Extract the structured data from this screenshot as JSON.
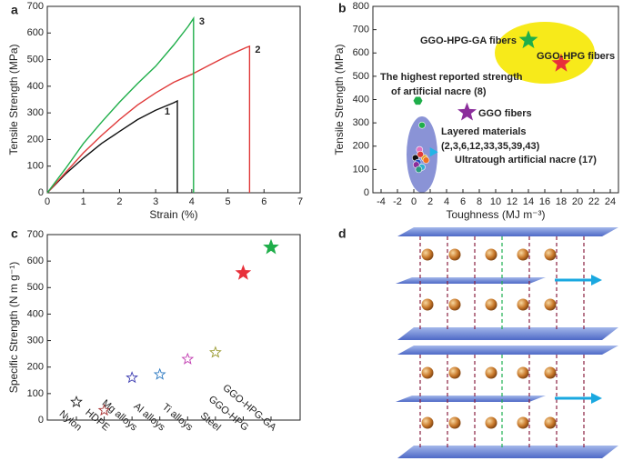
{
  "chart_data": [
    {
      "type": "line",
      "panel_label": "a",
      "xlabel": "Strain (%)",
      "ylabel": "Tensile Strength (MPa)",
      "xlim": [
        0,
        7
      ],
      "xticks": [
        0,
        1,
        2,
        3,
        4,
        5,
        6,
        7
      ],
      "ylim": [
        0,
        700
      ],
      "yticks": [
        0,
        100,
        200,
        300,
        400,
        500,
        600,
        700
      ],
      "series": [
        {
          "name": "1",
          "color": "#111111",
          "x": [
            0,
            0.5,
            1,
            1.5,
            2,
            2.5,
            3,
            3.5,
            3.6,
            3.6
          ],
          "values": [
            0,
            70,
            130,
            185,
            230,
            275,
            310,
            338,
            345,
            0
          ]
        },
        {
          "name": "2",
          "color": "#e03a3a",
          "x": [
            0,
            0.5,
            1,
            1.5,
            2,
            2.5,
            3,
            3.5,
            4,
            4.5,
            5,
            5.5,
            5.6,
            5.6
          ],
          "values": [
            0,
            75,
            150,
            215,
            275,
            330,
            375,
            415,
            445,
            480,
            515,
            545,
            550,
            0
          ]
        },
        {
          "name": "3",
          "color": "#1fae4a",
          "x": [
            0,
            0.5,
            1,
            1.5,
            2,
            2.5,
            3,
            3.5,
            3.9,
            4.05,
            4.05
          ],
          "values": [
            0,
            90,
            185,
            265,
            340,
            410,
            475,
            555,
            625,
            655,
            0
          ]
        }
      ]
    },
    {
      "type": "scatter",
      "panel_label": "b",
      "xlabel": "Toughness (MJ m⁻³)",
      "ylabel": "Tensile Strength (MPa)",
      "xlim": [
        -5,
        25
      ],
      "xticks": [
        -4,
        -2,
        0,
        2,
        4,
        6,
        8,
        10,
        12,
        14,
        16,
        18,
        20,
        22,
        24
      ],
      "ylim": [
        0,
        800
      ],
      "yticks": [
        0,
        100,
        200,
        300,
        400,
        500,
        600,
        700,
        800
      ],
      "series": [
        {
          "name": [
            "GGO-HPG-GA fibers"
          ],
          "color": "#1fae4a",
          "marker": "star",
          "x": [
            14
          ],
          "values": [
            655
          ]
        },
        {
          "name": [
            "GGO-HPG fibers"
          ],
          "color": "#e8303a",
          "marker": "star",
          "x": [
            18
          ],
          "values": [
            555
          ]
        },
        {
          "name": [
            "GGO fibers"
          ],
          "color": "#8b2d9b",
          "marker": "star",
          "x": [
            6.5
          ],
          "values": [
            345
          ]
        },
        {
          "name": [
            "The highest reported strength",
            "of artificial nacre (8)"
          ],
          "color": "#1fae4a",
          "marker": "hexagon",
          "x": [
            0.5
          ],
          "values": [
            395
          ]
        },
        {
          "name": [
            "Layered materials",
            "(2,3,6,12,33,35,39,43)"
          ],
          "color": "#8a8fd8",
          "marker": "circle",
          "x": [
            1,
            0.7,
            0.2,
            0.5,
            1.0,
            1.3,
            0.8,
            0.3,
            1.5,
            0.6
          ],
          "values": [
            290,
            185,
            150,
            130,
            110,
            150,
            165,
            120,
            140,
            100
          ],
          "colors": [
            "#1fae4a",
            "#e070c0",
            "#111111",
            "#2050c0",
            "#30b0d0",
            "#e0a020",
            "#e03a3a",
            "#8b2d9b",
            "#f07020",
            "#2a9a80"
          ]
        },
        {
          "name": [
            "Ultratough artificial nacre (17)"
          ],
          "color": "#23b4e6",
          "marker": "triangle-right",
          "x": [
            2.3
          ],
          "values": [
            175
          ]
        }
      ]
    },
    {
      "type": "category-scatter",
      "panel_label": "c",
      "ylabel": "Specific Strength (N m g⁻¹)",
      "ylim": [
        0,
        700
      ],
      "yticks": [
        0,
        100,
        200,
        300,
        400,
        500,
        600,
        700
      ],
      "categories": [
        "Nylon",
        "HDPE",
        "Mg alloys",
        "Al alloys",
        "Ti alloys",
        "Steel",
        "GGO-HPG",
        "GGO-HPG-GA"
      ],
      "values": [
        68,
        37,
        160,
        172,
        230,
        255,
        555,
        652
      ],
      "colors": [
        "#222222",
        "#a83232",
        "#3a3ab0",
        "#2a78c0",
        "#c03ab0",
        "#9a9a30",
        "#e8303a",
        "#1fae4a"
      ],
      "filled": [
        false,
        false,
        false,
        false,
        false,
        false,
        true,
        true
      ]
    }
  ],
  "diagram": {
    "panel_label": "d"
  }
}
